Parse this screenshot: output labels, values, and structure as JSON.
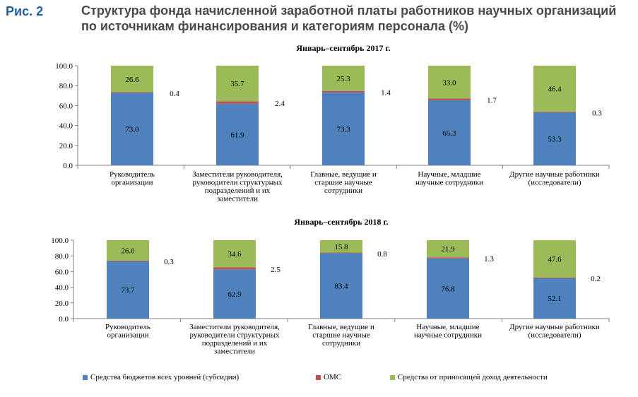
{
  "figure": {
    "label": "Рис. 2",
    "title": "Структура фонда начисленной заработной платы работников научных организаций по источникам финансирования и категориям персонала (%)"
  },
  "colors": {
    "budget": "#4f81bd",
    "oms": "#c0504d",
    "income": "#9bbb59",
    "axis": "#7f7f7f",
    "title": "#4a4a4a",
    "label": "#1f5f9f"
  },
  "legend": {
    "budget": "Средства бюджетов всех уровней (субсидии)",
    "oms": "ОМС",
    "income": "Средства от приносящей доход деятельности"
  },
  "chart_data": [
    {
      "type": "bar",
      "stacked": true,
      "title": "Январь–сентябрь 2017 г.",
      "categories": [
        [
          "Руководитель",
          "организации"
        ],
        [
          "Заместители руководителя,",
          "руководители структурных",
          "подразделений и их",
          "заместители"
        ],
        [
          "Главные, ведущие и",
          "старшие научные",
          "сотрудники"
        ],
        [
          "Научные, младшие",
          "научные сотрудники"
        ],
        [
          "Другие научные работники",
          "(исследователи)"
        ]
      ],
      "series": [
        {
          "name": "Средства бюджетов всех уровней (субсидии)",
          "values": [
            73.0,
            61.9,
            73.3,
            65.3,
            53.3
          ],
          "labels": [
            "73.0",
            "61.9",
            "73.3",
            "65.3",
            "53.3"
          ]
        },
        {
          "name": "ОМС",
          "values": [
            0.4,
            2.4,
            1.4,
            1.7,
            0.3
          ],
          "labels": [
            "0.4",
            "2.4",
            "1.4",
            "1.7",
            "0.3"
          ]
        },
        {
          "name": "Средства от приносящей доход деятельности",
          "values": [
            26.6,
            35.7,
            25.3,
            33.0,
            46.4
          ],
          "labels": [
            "26.6",
            "35.7",
            "25.3",
            "33.0",
            "46.4"
          ]
        }
      ],
      "ylim": [
        0,
        100
      ],
      "yticks": [
        "0.0",
        "20.0",
        "40.0",
        "60.0",
        "80.0",
        "100.0"
      ],
      "grid": false,
      "legend_position": "bottom"
    },
    {
      "type": "bar",
      "stacked": true,
      "title": "Январь–сентябрь 2018 г.",
      "categories": [
        [
          "Руководитель",
          "организации"
        ],
        [
          "Заместители руководителя,",
          "руководители структурных",
          "подразделений и их",
          "заместители"
        ],
        [
          "Главные, ведущие и",
          "старшие научные",
          "сотрудники"
        ],
        [
          "Научные, младшие",
          "научные сотрудники"
        ],
        [
          "Другие научные работники",
          "(исследователи)"
        ]
      ],
      "series": [
        {
          "name": "Средства бюджетов всех уровней (субсидии)",
          "values": [
            73.7,
            62.9,
            83.4,
            76.8,
            52.1
          ],
          "labels": [
            "73.7",
            "62.9",
            "83.4",
            "76.8",
            "52.1"
          ]
        },
        {
          "name": "ОМС",
          "values": [
            0.3,
            2.5,
            0.8,
            1.3,
            0.2
          ],
          "labels": [
            "0.3",
            "2.5",
            "0.8",
            "1.3",
            "0.2"
          ]
        },
        {
          "name": "Средства от приносящей доход деятельности",
          "values": [
            26.0,
            34.6,
            15.8,
            21.9,
            47.6
          ],
          "labels": [
            "26.0",
            "34.6",
            "15.8",
            "21.9",
            "47.6"
          ]
        }
      ],
      "ylim": [
        0,
        100
      ],
      "yticks": [
        "0.0",
        "20.0",
        "40.0",
        "60.0",
        "80.0",
        "100.0"
      ],
      "grid": false,
      "legend_position": "bottom"
    }
  ]
}
